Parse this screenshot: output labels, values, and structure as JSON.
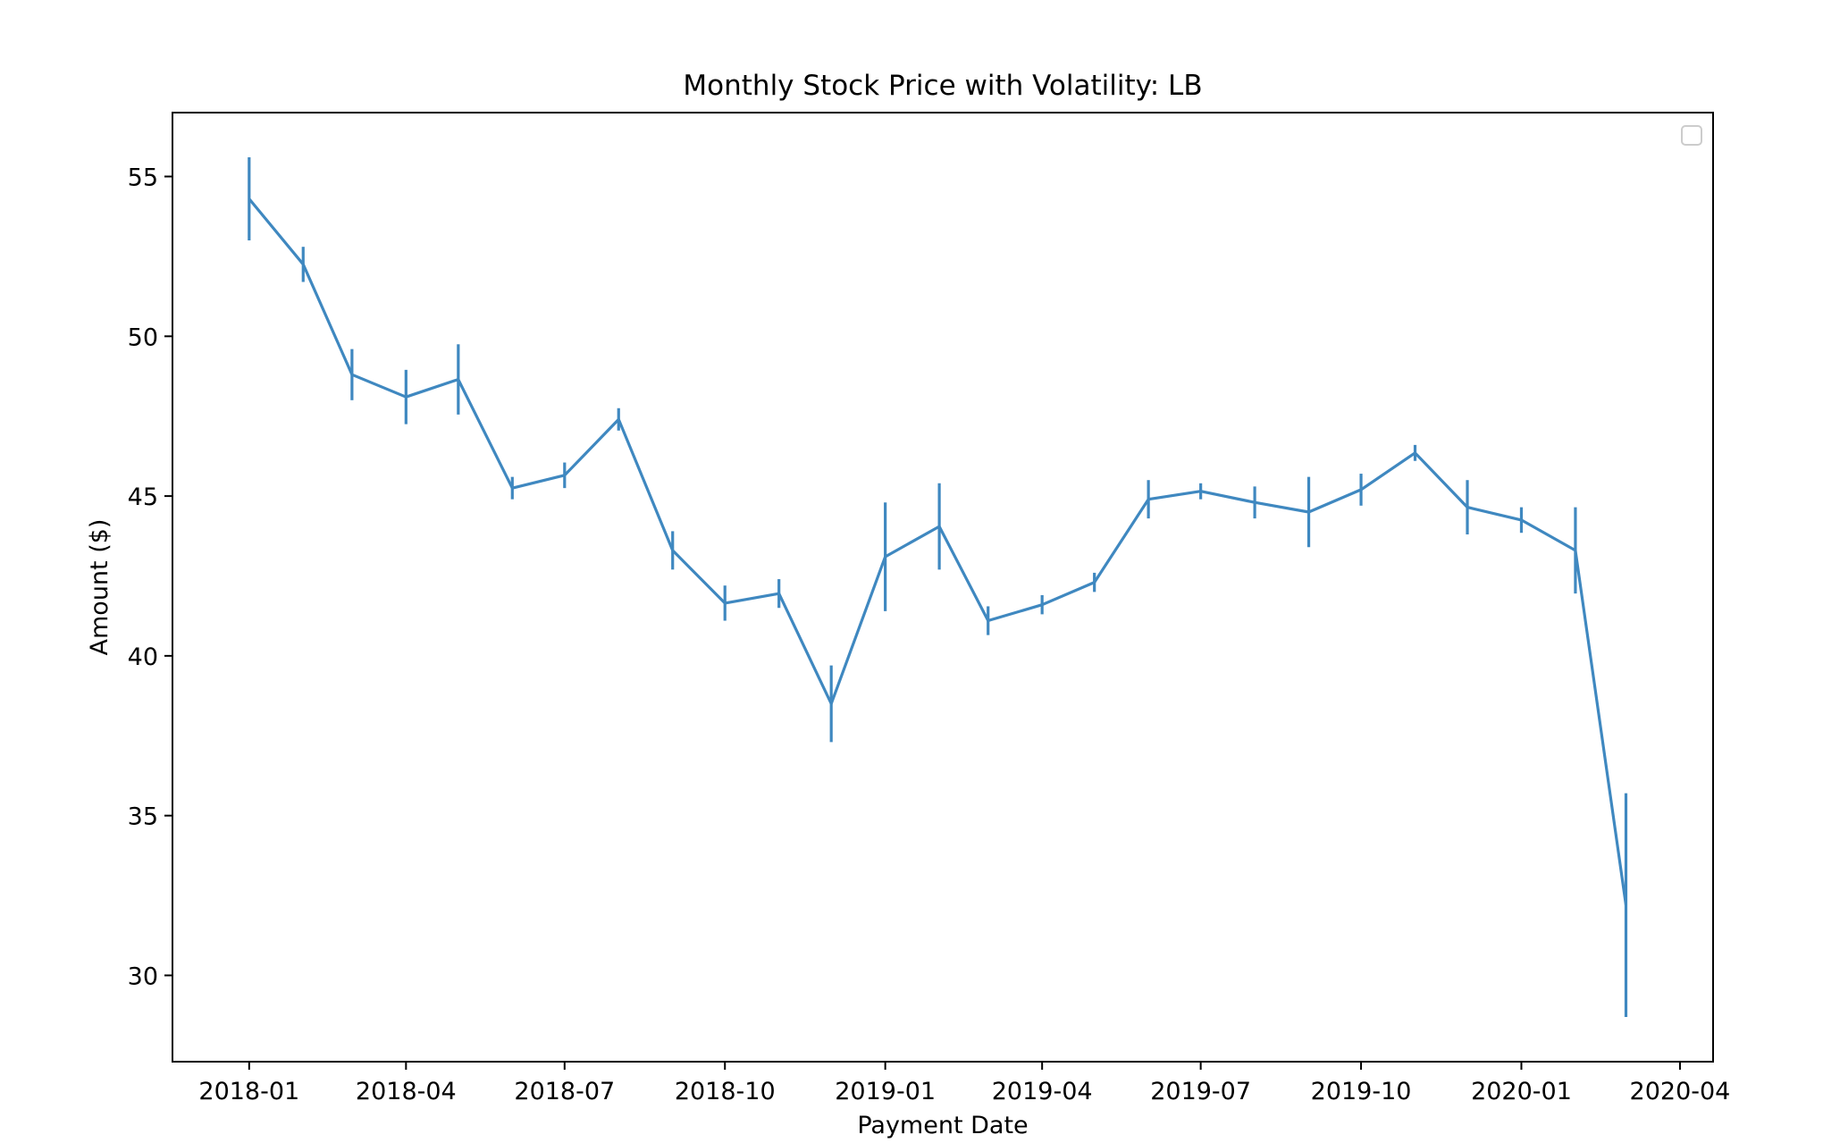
{
  "chart_data": {
    "type": "line",
    "title": "Monthly Stock Price with Volatility: LB",
    "xlabel": "Payment Date",
    "ylabel": "Amount ($)",
    "x_ticks": [
      "2018-01",
      "2018-04",
      "2018-07",
      "2018-10",
      "2019-01",
      "2019-04",
      "2019-07",
      "2019-10",
      "2020-01",
      "2020-04"
    ],
    "y_ticks": [
      30,
      35,
      40,
      45,
      50,
      55
    ],
    "ylim": [
      27.3,
      57.0
    ],
    "xlim": [
      "2017-11-18",
      "2020-04-20"
    ],
    "grid": false,
    "legend": "top-right (empty)",
    "line_color": "#3f88c0",
    "series": [
      {
        "x": [
          "2018-01-01",
          "2018-02-01",
          "2018-03-01",
          "2018-04-01",
          "2018-05-01",
          "2018-06-01",
          "2018-07-01",
          "2018-08-01",
          "2018-09-01",
          "2018-10-01",
          "2018-11-01",
          "2018-12-01",
          "2019-01-01",
          "2019-02-01",
          "2019-03-01",
          "2019-04-01",
          "2019-05-01",
          "2019-06-01",
          "2019-07-01",
          "2019-08-01",
          "2019-09-01",
          "2019-10-01",
          "2019-11-01",
          "2019-12-01",
          "2020-01-01",
          "2020-02-01",
          "2020-03-01"
        ],
        "values": [
          54.3,
          52.25,
          48.8,
          48.1,
          48.65,
          45.25,
          45.65,
          47.4,
          43.3,
          41.65,
          41.95,
          38.5,
          43.1,
          44.05,
          41.1,
          41.6,
          42.3,
          44.9,
          45.15,
          44.8,
          44.5,
          45.2,
          46.35,
          44.65,
          44.25,
          43.3,
          32.2
        ],
        "errors": [
          1.3,
          0.55,
          0.8,
          0.85,
          1.1,
          0.35,
          0.4,
          0.35,
          0.6,
          0.55,
          0.45,
          1.2,
          1.7,
          1.35,
          0.45,
          0.3,
          0.3,
          0.6,
          0.25,
          0.5,
          1.1,
          0.5,
          0.25,
          0.85,
          0.4,
          1.35,
          3.5
        ]
      }
    ]
  }
}
